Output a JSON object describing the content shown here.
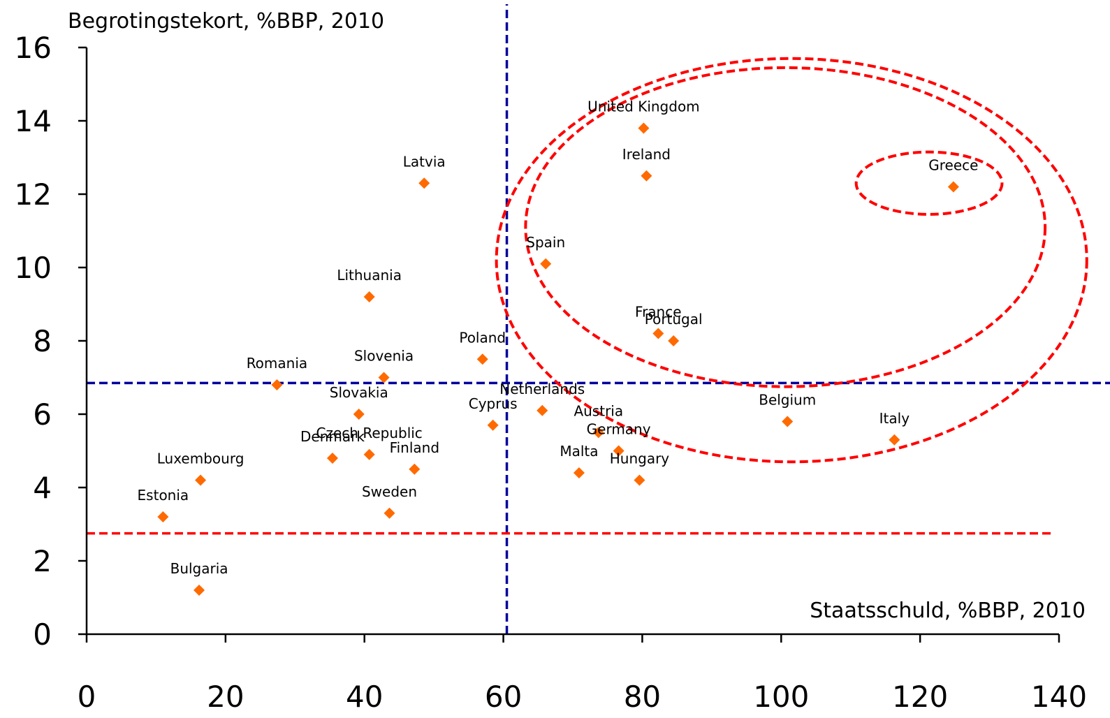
{
  "chart_data": {
    "type": "scatter",
    "title": "",
    "ylabel": "Begrotingstekort, %BBP, 2010",
    "xlabel": "Staatsschuld, %BBP, 2010",
    "xlim": [
      0,
      140
    ],
    "ylim": [
      0,
      16
    ],
    "xticks": [
      "0",
      "20",
      "40",
      "60",
      "80",
      "100",
      "120",
      "140"
    ],
    "yticks": [
      "0",
      "2",
      "4",
      "6",
      "8",
      "10",
      "12",
      "14",
      "16"
    ],
    "grid": false,
    "marker_color": "#ff6a00",
    "points": [
      {
        "label": "United Kingdom",
        "x": 80.2,
        "y": 13.8
      },
      {
        "label": "Ireland",
        "x": 80.6,
        "y": 12.5
      },
      {
        "label": "Greece",
        "x": 124.8,
        "y": 12.2
      },
      {
        "label": "Latvia",
        "x": 48.6,
        "y": 12.3
      },
      {
        "label": "Spain",
        "x": 66.1,
        "y": 10.1
      },
      {
        "label": "Lithuania",
        "x": 40.7,
        "y": 9.2
      },
      {
        "label": "France",
        "x": 82.3,
        "y": 8.2
      },
      {
        "label": "Portugal",
        "x": 84.5,
        "y": 8.0
      },
      {
        "label": "Poland",
        "x": 57.0,
        "y": 7.5
      },
      {
        "label": "Slovenia",
        "x": 42.8,
        "y": 7.0
      },
      {
        "label": "Romania",
        "x": 27.4,
        "y": 6.8
      },
      {
        "label": "Slovakia",
        "x": 39.2,
        "y": 6.0
      },
      {
        "label": "Netherlands",
        "x": 65.6,
        "y": 6.1
      },
      {
        "label": "Cyprus",
        "x": 58.5,
        "y": 5.7
      },
      {
        "label": "Belgium",
        "x": 100.9,
        "y": 5.8
      },
      {
        "label": "Austria",
        "x": 73.7,
        "y": 5.5
      },
      {
        "label": "Italy",
        "x": 116.3,
        "y": 5.3
      },
      {
        "label": "Germany",
        "x": 76.6,
        "y": 5.0
      },
      {
        "label": "Czech Republic",
        "x": 40.7,
        "y": 4.9
      },
      {
        "label": "Denmark",
        "x": 35.4,
        "y": 4.8
      },
      {
        "label": "Finland",
        "x": 47.2,
        "y": 4.5
      },
      {
        "label": "Malta",
        "x": 70.9,
        "y": 4.4
      },
      {
        "label": "Hungary",
        "x": 79.6,
        "y": 4.2
      },
      {
        "label": "Luxembourg",
        "x": 16.4,
        "y": 4.2
      },
      {
        "label": "Estonia",
        "x": 11.0,
        "y": 3.2
      },
      {
        "label": "Sweden",
        "x": 43.6,
        "y": 3.3
      },
      {
        "label": "Bulgaria",
        "x": 16.2,
        "y": 1.2
      }
    ],
    "reference_lines": [
      {
        "orientation": "vertical",
        "x": 60.5,
        "color": "#00009c"
      },
      {
        "orientation": "horizontal",
        "y": 6.85,
        "color": "#00009c"
      },
      {
        "orientation": "horizontal",
        "y": 2.75,
        "color": "#ff0000"
      }
    ],
    "ellipses": [
      {
        "cx": 101.5,
        "cy": 10.2,
        "rx": 42.5,
        "ry": 5.5,
        "color": "#ff0000"
      },
      {
        "cx": 100.6,
        "cy": 11.1,
        "rx": 37.4,
        "ry": 4.35,
        "color": "#ff0000"
      },
      {
        "cx": 121.3,
        "cy": 12.3,
        "rx": 10.5,
        "ry": 0.85,
        "color": "#ff0000"
      }
    ]
  }
}
